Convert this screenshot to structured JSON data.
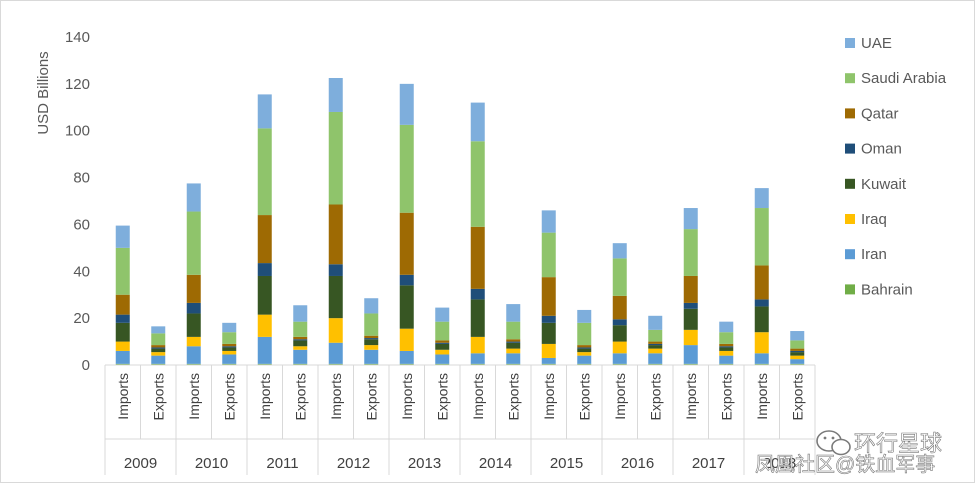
{
  "chart_data": {
    "type": "bar",
    "stacked": true,
    "ylabel": "USD Billions",
    "ylim": [
      0,
      140
    ],
    "yticks": [
      0,
      20,
      40,
      60,
      80,
      100,
      120,
      140
    ],
    "grid": false,
    "legend_position": "right",
    "years": [
      "2009",
      "2010",
      "2011",
      "2012",
      "2013",
      "2014",
      "2015",
      "2016",
      "2017",
      "2018"
    ],
    "flows": [
      "Imports",
      "Exports"
    ],
    "categories": [
      "2009 Imports",
      "2009 Exports",
      "2010 Imports",
      "2010 Exports",
      "2011 Imports",
      "2011 Exports",
      "2012 Imports",
      "2012 Exports",
      "2013 Imports",
      "2013 Exports",
      "2014 Imports",
      "2014 Exports",
      "2015 Imports",
      "2015 Exports",
      "2016 Imports",
      "2016 Exports",
      "2017 Imports",
      "2017 Exports",
      "2018 Imports",
      "2018 Exports"
    ],
    "series": [
      {
        "name": "Bahrain",
        "color": "#70ad47",
        "values": [
          0.5,
          0.5,
          0.5,
          0.5,
          0.5,
          0.5,
          0.5,
          0.5,
          0.5,
          0.5,
          0.5,
          0.5,
          0.5,
          0.5,
          0.5,
          0.5,
          0.5,
          0.5,
          0.5,
          0.5
        ]
      },
      {
        "name": "Iran",
        "color": "#5b9bd5",
        "values": [
          5.5,
          3.5,
          7.5,
          4.0,
          11.5,
          6.0,
          9.0,
          6.0,
          5.5,
          4.0,
          4.5,
          4.5,
          2.5,
          3.5,
          4.5,
          4.5,
          8.0,
          3.5,
          4.5,
          2.0
        ]
      },
      {
        "name": "Iraq",
        "color": "#ffc000",
        "values": [
          4.0,
          1.5,
          4.0,
          1.5,
          9.5,
          1.5,
          10.5,
          2.0,
          9.5,
          2.0,
          7.0,
          2.0,
          6.0,
          1.5,
          5.0,
          2.0,
          6.5,
          2.0,
          9.0,
          1.5
        ]
      },
      {
        "name": "Kuwait",
        "color": "#375623",
        "values": [
          8.0,
          1.5,
          10.0,
          1.5,
          16.5,
          2.5,
          18.0,
          2.5,
          18.5,
          2.5,
          16.0,
          2.5,
          9.0,
          1.5,
          7.0,
          1.5,
          9.0,
          1.5,
          11.0,
          1.5
        ]
      },
      {
        "name": "Oman",
        "color": "#1f4e79",
        "values": [
          3.5,
          0.5,
          4.5,
          0.5,
          5.5,
          0.5,
          5.0,
          0.5,
          4.5,
          0.5,
          4.5,
          0.5,
          3.0,
          0.5,
          2.5,
          0.5,
          2.5,
          0.5,
          3.0,
          0.5
        ]
      },
      {
        "name": "Qatar",
        "color": "#9e6a03",
        "values": [
          8.5,
          1.0,
          12.0,
          1.0,
          20.5,
          1.0,
          25.5,
          1.0,
          26.5,
          1.0,
          26.5,
          1.0,
          16.5,
          1.0,
          10.0,
          1.0,
          11.5,
          1.0,
          14.5,
          1.0
        ]
      },
      {
        "name": "Saudi Arabia",
        "color": "#8fc46b",
        "values": [
          20.0,
          5.0,
          27.0,
          5.0,
          37.0,
          6.5,
          39.5,
          9.5,
          37.5,
          8.0,
          36.5,
          7.5,
          19.0,
          9.5,
          16.0,
          5.0,
          20.0,
          5.0,
          24.5,
          3.5
        ]
      },
      {
        "name": "UAE",
        "color": "#7eaedc",
        "values": [
          9.5,
          3.0,
          12.0,
          4.0,
          14.5,
          7.0,
          14.5,
          6.5,
          17.5,
          6.0,
          16.5,
          7.5,
          9.5,
          5.5,
          6.5,
          6.0,
          9.0,
          4.5,
          8.5,
          4.0
        ]
      }
    ]
  },
  "legend": {
    "title": "",
    "order": [
      "UAE",
      "Saudi Arabia",
      "Qatar",
      "Oman",
      "Kuwait",
      "Iraq",
      "Iran",
      "Bahrain"
    ]
  },
  "watermark": {
    "line1": "环行星球",
    "line2": "凤凰社区@铁血军事"
  }
}
